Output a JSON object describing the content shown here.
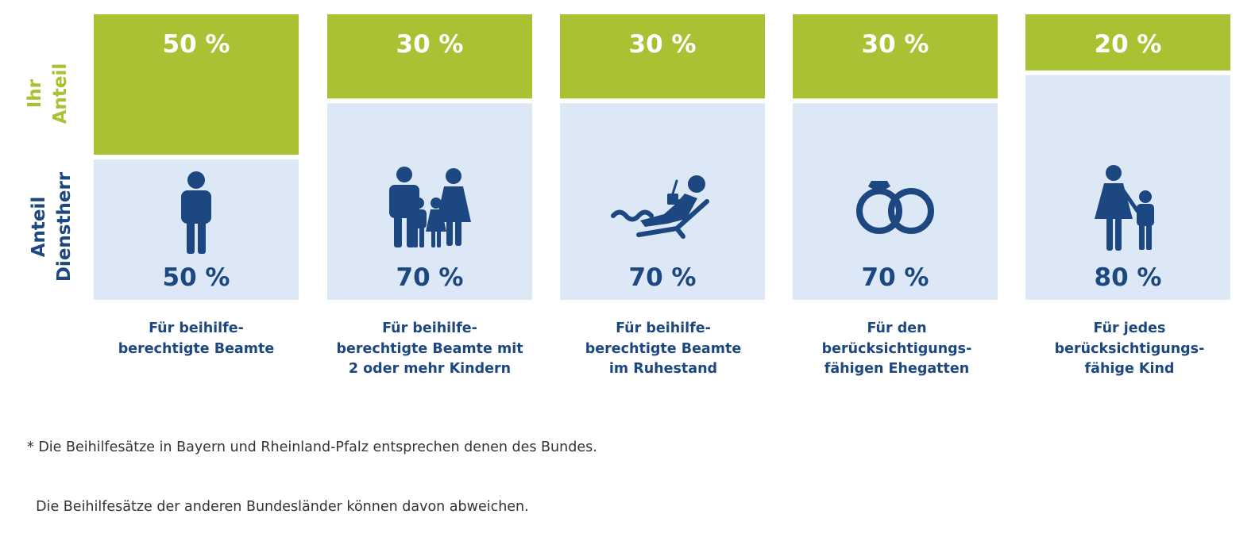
{
  "colors": {
    "green": "#a9c233",
    "light_blue": "#dde8f6",
    "dark_blue": "#1c4780",
    "text_gray": "#333333"
  },
  "chart_data": {
    "type": "bar",
    "stacked": true,
    "unit": "%",
    "ylim": [
      0,
      100
    ],
    "categories": [
      {
        "lines": [
          "Für beihilfe-",
          "berechtigte Beamte"
        ],
        "icon": "person-icon"
      },
      {
        "lines": [
          "Für beihilfe-",
          "berechtigte Beamte mit",
          "2 oder mehr Kindern"
        ],
        "icon": "family-icon"
      },
      {
        "lines": [
          "Für beihilfe-",
          "berechtigte Beamte",
          "im Ruhestand"
        ],
        "icon": "retiree-lounger-icon"
      },
      {
        "lines": [
          "Für den",
          "berücksichtigungs-",
          "fähigen Ehegatten"
        ],
        "icon": "wedding-rings-icon"
      },
      {
        "lines": [
          "Für jedes",
          "berücksichtigungs-",
          "fähige Kind"
        ],
        "icon": "mother-child-icon"
      }
    ],
    "series": [
      {
        "name": "Ihr Anteil",
        "lines": [
          "Ihr",
          "Anteil"
        ],
        "color": "#a9c233",
        "label_color": "#ffffff",
        "values": [
          50,
          30,
          30,
          30,
          20
        ],
        "labels": [
          "50 %",
          "30 %",
          "30 %",
          "30 %",
          "20 %"
        ]
      },
      {
        "name": "Anteil Dienstherr",
        "lines": [
          "Anteil",
          "Dienstherr"
        ],
        "color": "#dde8f6",
        "label_color": "#1c4780",
        "values": [
          50,
          70,
          70,
          70,
          80
        ],
        "labels": [
          "50 %",
          "70 %",
          "70 %",
          "70 %",
          "80 %"
        ]
      }
    ]
  },
  "footnote": {
    "line1": "* Die Beihilfesätze in Bayern und Rheinland-Pfalz entsprechen denen des Bundes.",
    "line2": "  Die Beihilfesätze der anderen Bundesländer können davon abweichen."
  }
}
